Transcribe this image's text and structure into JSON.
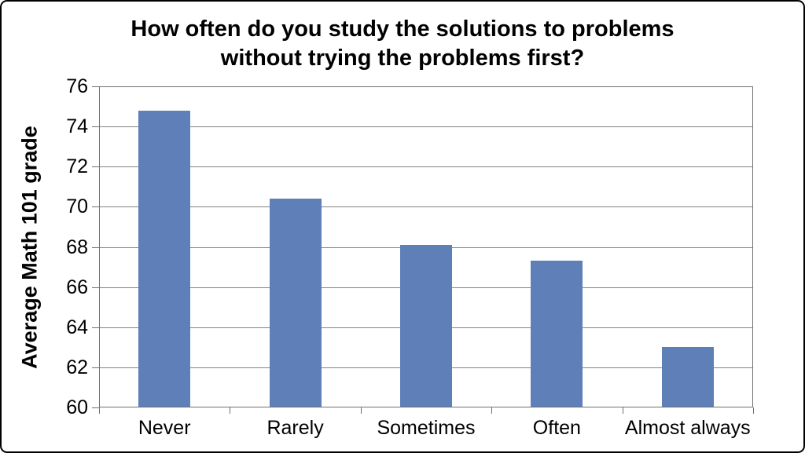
{
  "window": {
    "background_color": "#ffffff",
    "border_color": "#000000"
  },
  "chart_data": {
    "type": "bar",
    "title": "How often do you study the solutions to problems without trying the problems first?",
    "title_lines": [
      "How often do you study the solutions to problems",
      "without trying the problems first?"
    ],
    "xlabel": "",
    "ylabel": "Average Math 101 grade",
    "categories": [
      "Never",
      "Rarely",
      "Sometimes",
      "Often",
      "Almost always"
    ],
    "values": [
      74.8,
      70.4,
      68.1,
      67.3,
      63.0
    ],
    "ylim": [
      60,
      76
    ],
    "yticks": [
      60,
      62,
      64,
      66,
      68,
      70,
      72,
      74,
      76
    ],
    "grid": true,
    "legend": false,
    "bar_color": "#5f7fb8",
    "gridline_color": "#828282",
    "axis_color": "#6f6f6f",
    "text_color": "#000000"
  }
}
